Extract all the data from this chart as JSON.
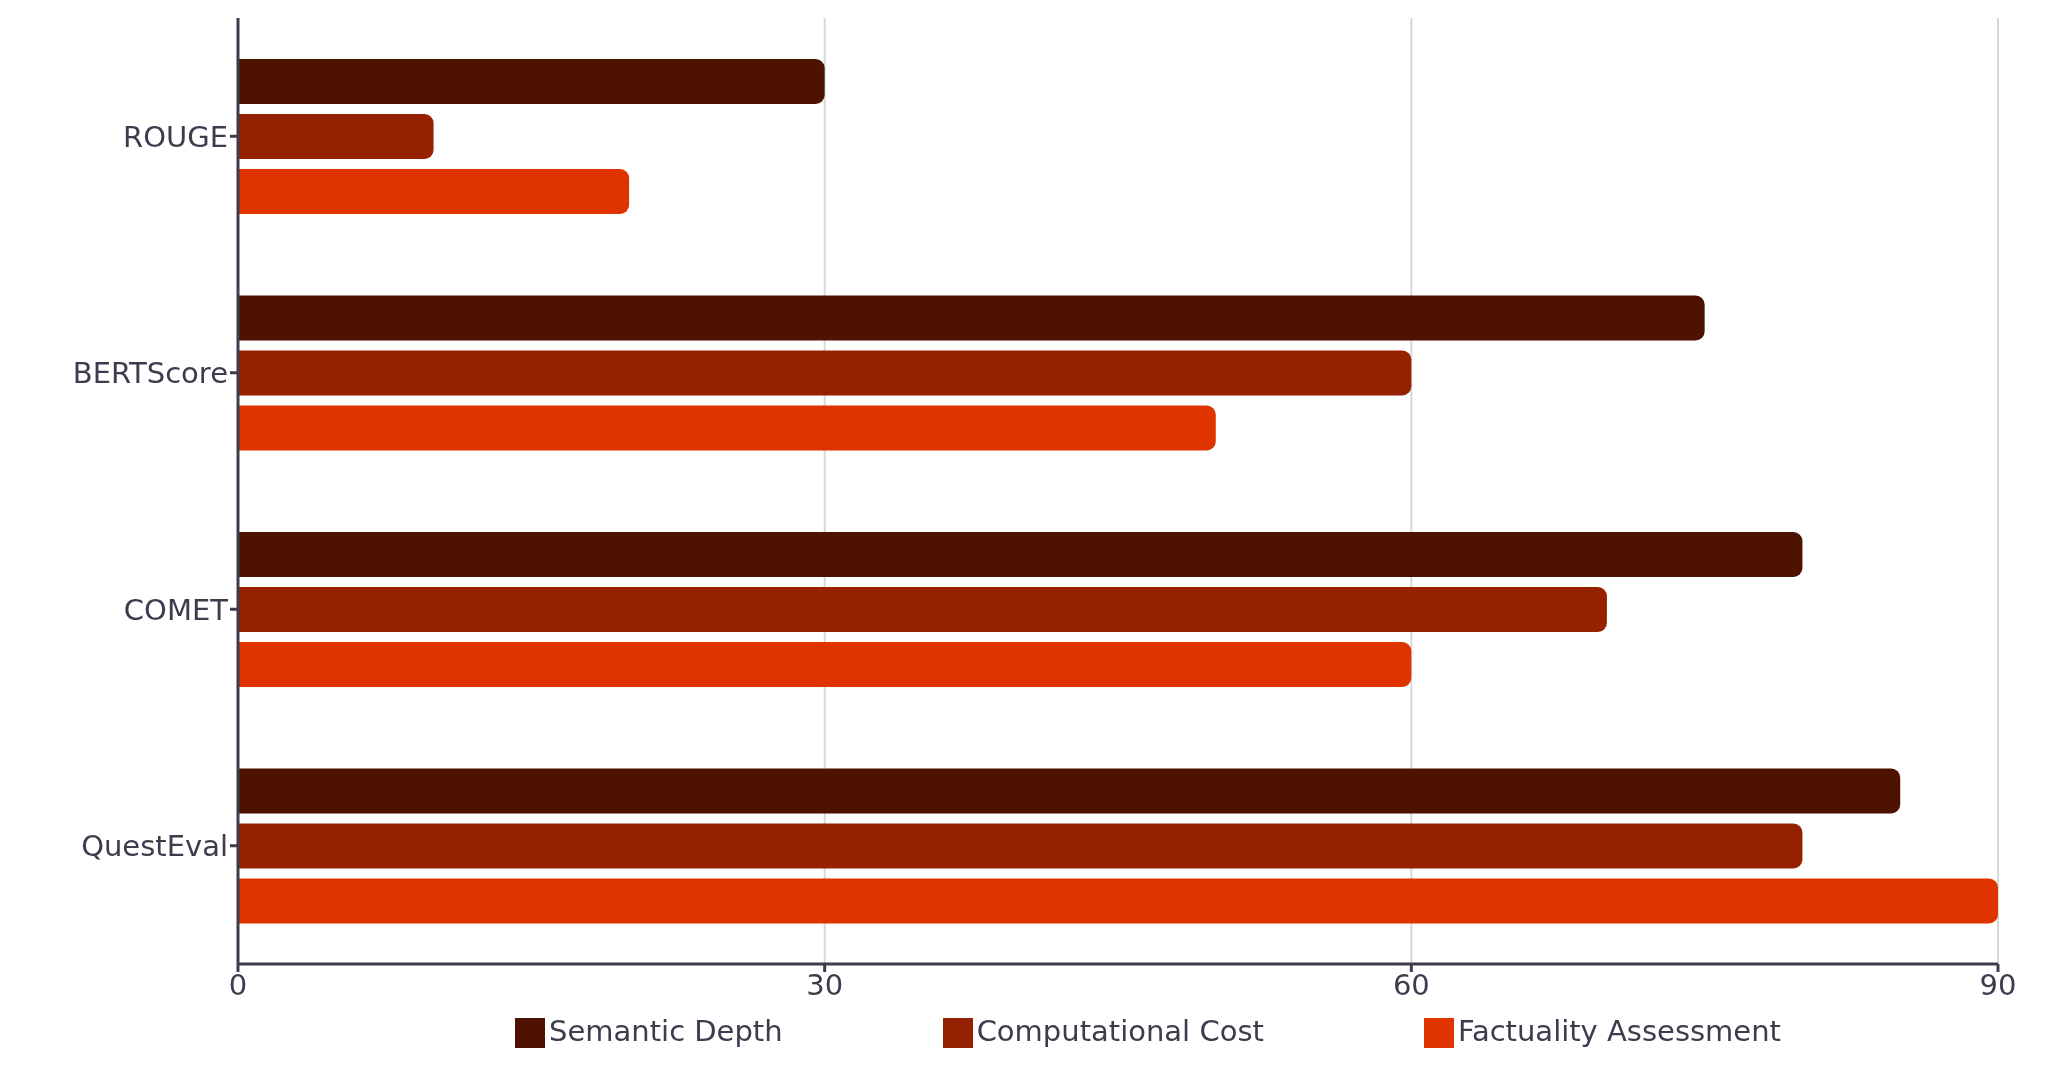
{
  "chart_data": {
    "type": "bar",
    "orientation": "horizontal",
    "categories": [
      "ROUGE",
      "BERTScore",
      "COMET",
      "QuestEval"
    ],
    "series": [
      {
        "name": "Semantic Depth",
        "color": "#4e1300",
        "values": [
          30,
          75,
          80,
          85
        ]
      },
      {
        "name": "Computational Cost",
        "color": "#952100",
        "values": [
          10,
          60,
          70,
          80
        ]
      },
      {
        "name": "Factuality Assessment",
        "color": "#e03400",
        "values": [
          20,
          50,
          60,
          90
        ]
      }
    ],
    "xlim": [
      0,
      90
    ],
    "xticks": [
      0,
      30,
      60,
      90
    ],
    "grid": "x",
    "legend": "bottom"
  }
}
